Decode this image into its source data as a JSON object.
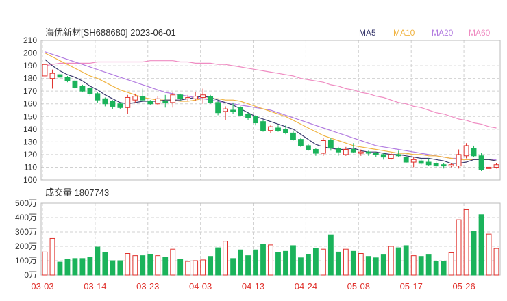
{
  "header": {
    "title": "海优新材[SH688680] 2023-06-01"
  },
  "legend": [
    {
      "name": "MA5",
      "color": "#3a3a6e"
    },
    {
      "name": "MA10",
      "color": "#f0b443"
    },
    {
      "name": "MA20",
      "color": "#b27be0"
    },
    {
      "name": "MA60",
      "color": "#ef8cc2"
    }
  ],
  "colors": {
    "up": "#e0312c",
    "down": "#1bb35b",
    "grid": "#d0d0d0",
    "axis": "#333333"
  },
  "volume_panel": {
    "title": "成交量 1807743"
  },
  "chart_data": [
    {
      "type": "candlestick",
      "title": "海优新材[SH688680] 2023-06-01",
      "ylim": [
        100,
        210
      ],
      "yticks": [
        100,
        110,
        120,
        130,
        140,
        150,
        160,
        170,
        180,
        190,
        200,
        210
      ],
      "x_tick_labels": [
        "03-03",
        "03-14",
        "03-23",
        "04-03",
        "04-13",
        "04-24",
        "05-08",
        "05-17",
        "05-26"
      ],
      "x_tick_index": [
        0,
        7,
        14,
        21,
        28,
        35,
        42,
        49,
        56
      ],
      "ohlc": [
        [
          182,
          192,
          180,
          191
        ],
        [
          180,
          187,
          172,
          184
        ],
        [
          183,
          185,
          179,
          181
        ],
        [
          181,
          182,
          177,
          178
        ],
        [
          178,
          179,
          172,
          173
        ],
        [
          174,
          175,
          169,
          170
        ],
        [
          172,
          174,
          166,
          168
        ],
        [
          168,
          169,
          161,
          163
        ],
        [
          164,
          165,
          158,
          160
        ],
        [
          162,
          163,
          156,
          158
        ],
        [
          160,
          161,
          156,
          157
        ],
        [
          157,
          167,
          152,
          165
        ],
        [
          163,
          168,
          161,
          166
        ],
        [
          166,
          172,
          162,
          163
        ],
        [
          162,
          163,
          159,
          160
        ],
        [
          160,
          166,
          159,
          164
        ],
        [
          162,
          167,
          157,
          161
        ],
        [
          161,
          169,
          157,
          167
        ],
        [
          167,
          168,
          162,
          164
        ],
        [
          164,
          167,
          162,
          165
        ],
        [
          164,
          169,
          162,
          166
        ],
        [
          165,
          172,
          160,
          167
        ],
        [
          166,
          167,
          160,
          161
        ],
        [
          161,
          162,
          151,
          153
        ],
        [
          154,
          158,
          147,
          156
        ],
        [
          155,
          161,
          152,
          154
        ],
        [
          157,
          158,
          150,
          151
        ],
        [
          152,
          153,
          147,
          149
        ],
        [
          150,
          151,
          143,
          145
        ],
        [
          146,
          147,
          138,
          139
        ],
        [
          139,
          143,
          137,
          142
        ],
        [
          141,
          143,
          138,
          139
        ],
        [
          140,
          143,
          136,
          137
        ],
        [
          137,
          139,
          131,
          132
        ],
        [
          132,
          133,
          126,
          127
        ],
        [
          127,
          128,
          123,
          124
        ],
        [
          124,
          125,
          119,
          121
        ],
        [
          121,
          133,
          119,
          131
        ],
        [
          131,
          133,
          123,
          125
        ],
        [
          125,
          126,
          119,
          122
        ],
        [
          120,
          126,
          119,
          124
        ],
        [
          124,
          129,
          121,
          122
        ],
        [
          121,
          124,
          119,
          122
        ],
        [
          122,
          123,
          119,
          121
        ],
        [
          121,
          122,
          118,
          120
        ],
        [
          120,
          121,
          116,
          118
        ],
        [
          117,
          121,
          116,
          120
        ],
        [
          120,
          123,
          118,
          119
        ],
        [
          118,
          119,
          113,
          114
        ],
        [
          114,
          118,
          110,
          116
        ],
        [
          115,
          117,
          112,
          113
        ],
        [
          114,
          117,
          111,
          112
        ],
        [
          113,
          115,
          110,
          111
        ],
        [
          112,
          113,
          109,
          111
        ],
        [
          111,
          113,
          110,
          112
        ],
        [
          111,
          124,
          109,
          120
        ],
        [
          119,
          129,
          117,
          127
        ],
        [
          125,
          127,
          118,
          119
        ],
        [
          119,
          121,
          107,
          108
        ],
        [
          109,
          111,
          106,
          110
        ],
        [
          110,
          113,
          109,
          112
        ]
      ],
      "ma5": [
        195,
        190,
        186,
        183,
        181,
        178,
        174,
        171,
        167,
        164,
        161,
        160,
        161,
        162,
        162,
        162,
        163,
        163,
        163,
        164,
        165,
        166,
        165,
        163,
        161,
        159,
        156,
        153,
        150,
        148,
        146,
        144,
        142,
        140,
        136,
        132,
        128,
        126,
        125,
        124,
        124,
        125,
        123,
        122,
        122,
        121,
        120,
        120,
        119,
        118,
        117,
        117,
        116,
        115,
        113,
        113,
        114,
        116,
        116,
        116,
        115
      ],
      "ma10": [
        200,
        197,
        194,
        191,
        188,
        185,
        182,
        180,
        177,
        174,
        171,
        169,
        167,
        165,
        164,
        163,
        163,
        163,
        162,
        162,
        163,
        164,
        164,
        164,
        163,
        163,
        162,
        160,
        158,
        156,
        154,
        152,
        150,
        147,
        144,
        141,
        138,
        135,
        133,
        131,
        129,
        127,
        126,
        125,
        124,
        123,
        122,
        121,
        121,
        120,
        120,
        119,
        119,
        118,
        117,
        116,
        116,
        116,
        116,
        116,
        115
      ],
      "ma20": [
        201,
        199,
        197,
        195,
        193,
        191,
        189,
        187,
        185,
        183,
        181,
        179,
        177,
        175,
        173,
        171,
        169,
        168,
        167,
        166,
        165,
        164,
        163,
        162,
        161,
        160,
        159,
        158,
        157,
        156,
        155,
        153,
        151,
        149,
        147,
        145,
        143,
        141,
        139,
        137,
        135,
        133,
        131,
        129,
        127,
        126,
        125,
        124,
        123,
        122,
        121,
        120,
        119,
        118,
        117,
        117,
        116,
        116,
        116,
        116,
        116
      ],
      "ma60": [
        190,
        191,
        192,
        192,
        192,
        192,
        192,
        193,
        193,
        193,
        193,
        193,
        193,
        193,
        194,
        194,
        194,
        194,
        193,
        193,
        192,
        192,
        192,
        191,
        191,
        190,
        189,
        188,
        187,
        186,
        185,
        184,
        183,
        182,
        180,
        179,
        178,
        177,
        175,
        174,
        172,
        171,
        169,
        168,
        166,
        165,
        163,
        161,
        160,
        158,
        157,
        155,
        153,
        152,
        150,
        148,
        147,
        145,
        144,
        142,
        141
      ]
    },
    {
      "type": "bar",
      "title": "成交量 1807743",
      "unit": "万",
      "ylim": [
        0,
        500
      ],
      "yticks": [
        "0万",
        "100万",
        "200万",
        "300万",
        "400万",
        "500万"
      ],
      "values": [
        160,
        255,
        90,
        110,
        115,
        115,
        125,
        195,
        155,
        100,
        100,
        150,
        135,
        135,
        145,
        135,
        125,
        180,
        110,
        95,
        100,
        105,
        130,
        190,
        235,
        115,
        175,
        135,
        175,
        215,
        210,
        155,
        165,
        205,
        120,
        145,
        185,
        180,
        280,
        160,
        180,
        165,
        150,
        130,
        120,
        140,
        200,
        190,
        205,
        135,
        130,
        140,
        95,
        95,
        155,
        385,
        455,
        305,
        420,
        285,
        185
      ]
    }
  ]
}
